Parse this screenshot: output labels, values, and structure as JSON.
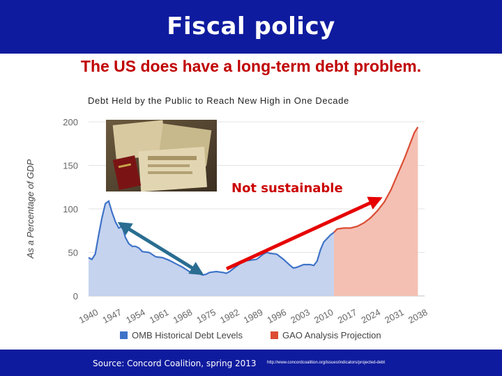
{
  "slide": {
    "title": "Fiscal policy",
    "subtitle": "The US does have a long-term debt problem.",
    "source_text": "Source: Concord Coalition, spring 2013",
    "source_url": "http://www.concordcoalition.org/issues/indicators/projected-debt"
  },
  "colors": {
    "header_bar": "#0f1b9e",
    "subtitle_text": "#c00000",
    "historical_fill": "#c5d3ee",
    "historical_line": "#3f73c8",
    "projection_fill": "#f4c0b3",
    "projection_line": "#db4c33",
    "annotation_text": "#cc0000",
    "red_arrow": "#e60000",
    "blue_arrow": "#2a6d91"
  },
  "chart_data": {
    "type": "area",
    "title": "Debt Held by the Public to Reach New High in One Decade",
    "ylabel": "As a Percentage of GDP",
    "xlabel": "",
    "ylim": [
      0,
      200
    ],
    "xlim": [
      1940,
      2040
    ],
    "y_ticks": [
      "200",
      "150",
      "100",
      "50",
      "0"
    ],
    "x_ticks": [
      "1940",
      "1947",
      "1954",
      "1961",
      "1968",
      "1975",
      "1982",
      "1989",
      "1996",
      "2003",
      "2010",
      "2017",
      "2024",
      "2031",
      "2038"
    ],
    "grid": true,
    "legend_position": "bottom",
    "series": [
      {
        "name": "OMB Historical Debt Levels",
        "x": [
          1940,
          1941,
          1942,
          1943,
          1944,
          1945,
          1946,
          1947,
          1948,
          1949,
          1950,
          1951,
          1952,
          1953,
          1954,
          1955,
          1956,
          1958,
          1960,
          1962,
          1964,
          1966,
          1968,
          1970,
          1972,
          1974,
          1975,
          1976,
          1978,
          1980,
          1981,
          1982,
          1984,
          1986,
          1988,
          1990,
          1992,
          1993,
          1994,
          1996,
          1998,
          2000,
          2001,
          2002,
          2004,
          2006,
          2007,
          2008,
          2009,
          2010,
          2012,
          2013
        ],
        "values": [
          44,
          42,
          48,
          70,
          90,
          106,
          109,
          96,
          85,
          78,
          80,
          67,
          60,
          57,
          57,
          55,
          51,
          50,
          45,
          44,
          41,
          37,
          33,
          28,
          27,
          24,
          25,
          27,
          28,
          27,
          26,
          28,
          34,
          40,
          41,
          42,
          48,
          50,
          49,
          48,
          42,
          35,
          32,
          33,
          36,
          36,
          35,
          40,
          53,
          62,
          70,
          73
        ]
      },
      {
        "name": "GAO Analysis Projection",
        "x": [
          2013,
          2014,
          2016,
          2018,
          2020,
          2022,
          2024,
          2026,
          2028,
          2030,
          2032,
          2034,
          2036,
          2037,
          2038
        ],
        "values": [
          73,
          77,
          78,
          78,
          80,
          84,
          90,
          98,
          108,
          122,
          140,
          158,
          178,
          188,
          194
        ]
      }
    ],
    "annotations": [
      {
        "text": "Not sustainable"
      }
    ]
  }
}
